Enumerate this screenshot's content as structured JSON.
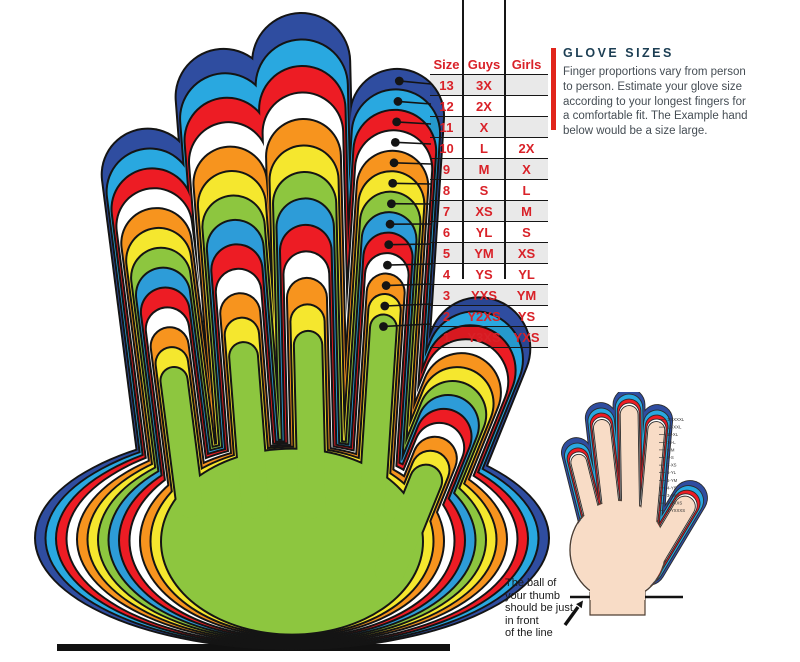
{
  "info_panel": {
    "heading": "GLOVE SIZES",
    "body": "Finger proportions vary from person to person. Estimate your glove size according to your longest fingers for a comfortable fit. The Example hand below would be a size large.",
    "accent_color": "#E1251B",
    "heading_color": "#1C3E53"
  },
  "size_table": {
    "columns": [
      "Size",
      "Guys",
      "Girls"
    ],
    "rows": [
      [
        "13",
        "3X",
        ""
      ],
      [
        "12",
        "2X",
        ""
      ],
      [
        "11",
        "X",
        ""
      ],
      [
        "10",
        "L",
        "2X"
      ],
      [
        "9",
        "M",
        "X"
      ],
      [
        "8",
        "S",
        "L"
      ],
      [
        "7",
        "XS",
        "M"
      ],
      [
        "6",
        "YL",
        "S"
      ],
      [
        "5",
        "YM",
        "XS"
      ],
      [
        "4",
        "YS",
        "YL"
      ],
      [
        "3",
        "YXS",
        "YM"
      ],
      [
        "2",
        "Y2XS",
        "YS"
      ],
      [
        "1",
        "Y3XS",
        "YXS"
      ]
    ],
    "text_color": "#D92128"
  },
  "glove_layers": {
    "sizes": [
      13,
      12,
      11,
      10,
      9,
      8,
      7,
      6,
      5,
      4,
      3,
      2,
      1
    ],
    "colors": [
      "#2F4DA0",
      "#29A8E0",
      "#ED1C24",
      "#FFFFFF",
      "#F7941E",
      "#F5E72E",
      "#8DC63F",
      "#2D9CD8",
      "#ED1C24",
      "#FFFFFF",
      "#F7941E",
      "#F5E72E",
      "#8DC63F"
    ]
  },
  "example_hand": {
    "labels": [
      "13-XXXL",
      "12-XXL",
      "11-XL",
      "10-L",
      "9-M",
      "8-S",
      "7-XS",
      "6-YL",
      "5-YM",
      "4-YS",
      "3-YXS",
      "2-YXXS",
      "1-YXXXS"
    ],
    "band_colors": [
      "#2F4DA0",
      "#29A8E0",
      "#ED1C24",
      "#FFFFFF"
    ],
    "skin_color": "#F8DCC6",
    "caption_lines": [
      "The ball of",
      "your thumb",
      "should be just",
      "in front",
      "of the line"
    ]
  }
}
